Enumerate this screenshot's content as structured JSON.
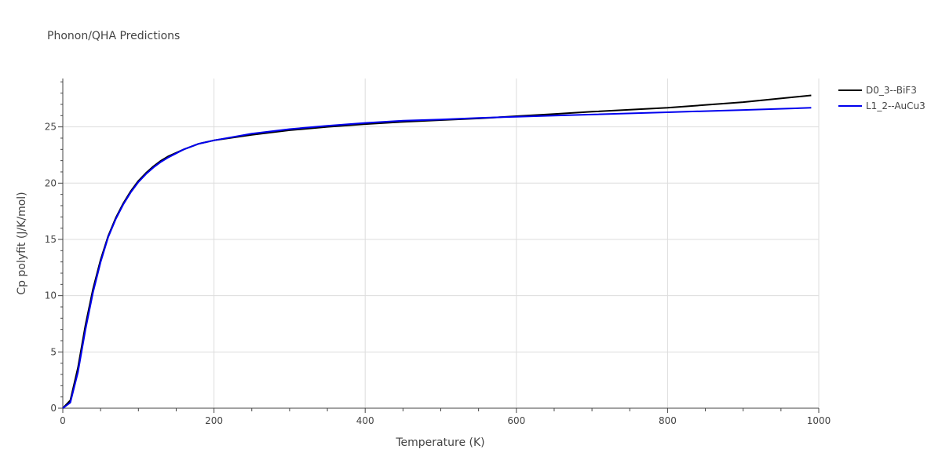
{
  "chart_data": {
    "type": "line",
    "title": "Phonon/QHA Predictions",
    "xlabel": "Temperature (K)",
    "ylabel": "Cp polyfit (J/K/mol)",
    "xlim": [
      0,
      1000
    ],
    "ylim": [
      0,
      29.3
    ],
    "x_ticks": [
      0,
      200,
      400,
      600,
      800,
      1000
    ],
    "y_ticks": [
      0,
      5,
      10,
      15,
      20,
      25
    ],
    "grid": true,
    "legend_position": "top-right",
    "series": [
      {
        "name": "D0_3--BiF3",
        "color": "#000000",
        "x": [
          0,
          10,
          20,
          30,
          40,
          50,
          60,
          70,
          80,
          90,
          100,
          110,
          120,
          130,
          140,
          160,
          180,
          200,
          250,
          300,
          350,
          400,
          450,
          500,
          550,
          600,
          650,
          700,
          800,
          900,
          990
        ],
        "y": [
          0,
          0.7,
          3.6,
          7.4,
          10.6,
          13.2,
          15.3,
          16.9,
          18.2,
          19.3,
          20.2,
          20.9,
          21.5,
          22.0,
          22.4,
          23.0,
          23.5,
          23.8,
          24.3,
          24.7,
          25.0,
          25.25,
          25.45,
          25.6,
          25.75,
          25.95,
          26.15,
          26.35,
          26.7,
          27.2,
          27.8
        ]
      },
      {
        "name": "L1_2--AuCu3",
        "color": "#0000ee",
        "x": [
          0,
          10,
          20,
          30,
          40,
          50,
          60,
          70,
          80,
          90,
          100,
          110,
          120,
          130,
          140,
          160,
          180,
          200,
          250,
          300,
          350,
          400,
          450,
          500,
          550,
          600,
          650,
          700,
          800,
          900,
          990
        ],
        "y": [
          0,
          0.5,
          3.2,
          7.0,
          10.3,
          13.0,
          15.2,
          16.8,
          18.1,
          19.2,
          20.1,
          20.8,
          21.4,
          21.9,
          22.3,
          23.0,
          23.5,
          23.8,
          24.4,
          24.8,
          25.1,
          25.35,
          25.55,
          25.65,
          25.8,
          25.9,
          26.0,
          26.1,
          26.3,
          26.5,
          26.7
        ]
      }
    ]
  }
}
